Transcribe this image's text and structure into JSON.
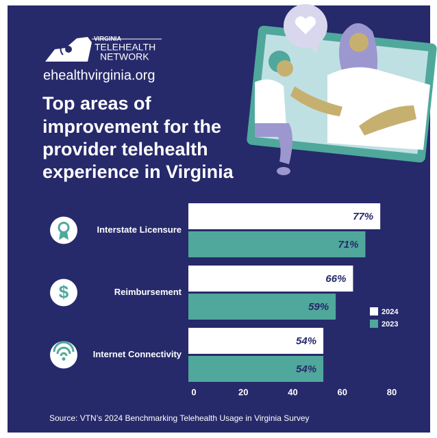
{
  "chart_data": {
    "type": "hbar",
    "logo": [
      "VIRGINIA",
      "TELEHEALTH",
      "NETWORK"
    ],
    "website": "ehealthvirginia.org",
    "title": [
      "Top areas of",
      "improvement for the",
      "provider telehealth",
      "experience in Virginia"
    ],
    "categories": [
      "Interstate Licensure",
      "Reimbursement",
      "Internet Connectivity"
    ],
    "series": [
      {
        "name": "2024",
        "color": "#ffffff",
        "values": [
          77,
          66,
          54
        ],
        "value_labels": [
          "77%",
          "66%",
          "54%"
        ]
      },
      {
        "name": "2023",
        "color": "#4fa89b",
        "values": [
          71,
          59,
          54
        ],
        "value_labels": [
          "71%",
          "59%",
          "54%"
        ]
      }
    ],
    "xlim": [
      0,
      80
    ],
    "xticks": [
      0,
      20,
      40,
      60,
      80
    ],
    "grid": false,
    "legend": "right",
    "source": "Source: VTN’s 2024 Benchmarking Telehealth Usage in Virginia Survey"
  }
}
